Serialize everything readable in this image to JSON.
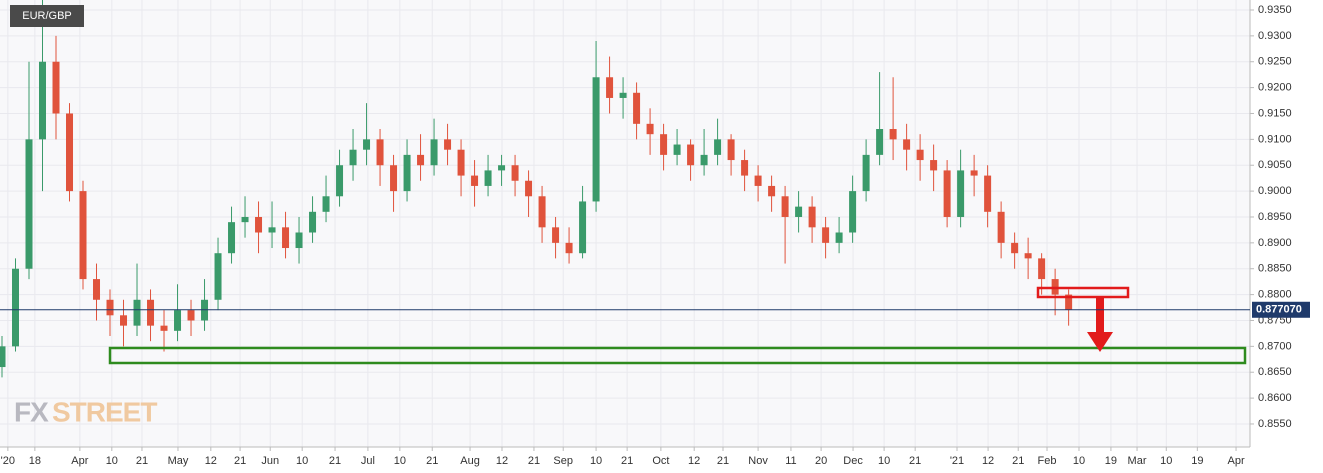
{
  "chart_data": {
    "type": "candlestick",
    "title": "EUR/GBP",
    "watermark": [
      "FX",
      "STREET"
    ],
    "up_color": "#3a9a6a",
    "down_color": "#e0533c",
    "grid": true,
    "x": [
      0,
      3,
      6,
      9,
      12,
      15,
      18,
      21,
      24,
      27,
      30,
      33,
      36,
      39,
      42,
      45,
      48,
      51,
      54,
      57,
      60,
      63,
      66,
      69,
      72,
      75,
      78,
      81,
      84,
      87,
      90,
      93,
      96,
      99,
      102,
      105,
      108,
      111,
      114,
      117,
      120,
      123,
      126,
      129,
      132,
      135,
      138,
      141,
      144,
      147,
      150,
      153,
      156,
      159,
      162,
      165,
      168,
      171,
      174,
      177,
      180,
      183,
      186,
      189,
      192,
      195,
      198,
      201,
      204,
      207,
      210,
      213,
      216,
      219,
      222,
      225,
      228,
      231,
      234,
      237
    ],
    "open": [
      0.866,
      0.87,
      0.885,
      0.91,
      0.925,
      0.915,
      0.9,
      0.883,
      0.879,
      0.876,
      0.874,
      0.879,
      0.874,
      0.873,
      0.877,
      0.875,
      0.879,
      0.888,
      0.894,
      0.895,
      0.892,
      0.893,
      0.889,
      0.892,
      0.896,
      0.899,
      0.905,
      0.908,
      0.91,
      0.905,
      0.9,
      0.907,
      0.905,
      0.91,
      0.908,
      0.903,
      0.901,
      0.904,
      0.905,
      0.902,
      0.899,
      0.893,
      0.89,
      0.888,
      0.898,
      0.922,
      0.918,
      0.919,
      0.913,
      0.911,
      0.907,
      0.909,
      0.905,
      0.907,
      0.91,
      0.906,
      0.903,
      0.901,
      0.899,
      0.895,
      0.897,
      0.893,
      0.89,
      0.892,
      0.9,
      0.907,
      0.912,
      0.91,
      0.908,
      0.906,
      0.904,
      0.895,
      0.904,
      0.903,
      0.896,
      0.89,
      0.888,
      0.887,
      0.883,
      0.88
    ],
    "high": [
      0.872,
      0.887,
      0.925,
      0.938,
      0.93,
      0.917,
      0.902,
      0.886,
      0.881,
      0.879,
      0.886,
      0.881,
      0.877,
      0.882,
      0.879,
      0.883,
      0.891,
      0.897,
      0.899,
      0.898,
      0.898,
      0.896,
      0.895,
      0.899,
      0.903,
      0.908,
      0.912,
      0.917,
      0.912,
      0.907,
      0.91,
      0.911,
      0.914,
      0.913,
      0.91,
      0.906,
      0.907,
      0.907,
      0.907,
      0.904,
      0.901,
      0.895,
      0.893,
      0.901,
      0.929,
      0.926,
      0.922,
      0.921,
      0.916,
      0.913,
      0.912,
      0.91,
      0.912,
      0.914,
      0.911,
      0.908,
      0.905,
      0.903,
      0.901,
      0.9,
      0.899,
      0.895,
      0.895,
      0.903,
      0.91,
      0.923,
      0.922,
      0.913,
      0.911,
      0.909,
      0.906,
      0.908,
      0.907,
      0.905,
      0.898,
      0.892,
      0.891,
      0.888,
      0.885,
      0.881
    ],
    "low": [
      0.864,
      0.869,
      0.883,
      0.9,
      0.91,
      0.898,
      0.881,
      0.875,
      0.872,
      0.87,
      0.872,
      0.871,
      0.869,
      0.871,
      0.872,
      0.873,
      0.877,
      0.886,
      0.891,
      0.888,
      0.889,
      0.887,
      0.886,
      0.89,
      0.894,
      0.897,
      0.902,
      0.905,
      0.901,
      0.896,
      0.898,
      0.902,
      0.903,
      0.905,
      0.899,
      0.897,
      0.899,
      0.901,
      0.899,
      0.895,
      0.89,
      0.887,
      0.886,
      0.887,
      0.896,
      0.915,
      0.914,
      0.91,
      0.907,
      0.904,
      0.905,
      0.902,
      0.903,
      0.905,
      0.903,
      0.9,
      0.898,
      0.896,
      0.886,
      0.892,
      0.89,
      0.887,
      0.888,
      0.89,
      0.898,
      0.905,
      0.906,
      0.904,
      0.902,
      0.9,
      0.893,
      0.893,
      0.899,
      0.893,
      0.887,
      0.885,
      0.883,
      0.88,
      0.876,
      0.874
    ],
    "close": [
      0.87,
      0.885,
      0.91,
      0.925,
      0.915,
      0.9,
      0.883,
      0.879,
      0.876,
      0.874,
      0.879,
      0.874,
      0.873,
      0.877,
      0.875,
      0.879,
      0.888,
      0.894,
      0.895,
      0.892,
      0.893,
      0.889,
      0.892,
      0.896,
      0.899,
      0.905,
      0.908,
      0.91,
      0.905,
      0.9,
      0.907,
      0.905,
      0.91,
      0.908,
      0.903,
      0.901,
      0.904,
      0.905,
      0.902,
      0.899,
      0.893,
      0.89,
      0.888,
      0.898,
      0.922,
      0.918,
      0.919,
      0.913,
      0.911,
      0.907,
      0.909,
      0.905,
      0.907,
      0.91,
      0.906,
      0.903,
      0.901,
      0.899,
      0.895,
      0.897,
      0.893,
      0.89,
      0.892,
      0.9,
      0.907,
      0.912,
      0.91,
      0.908,
      0.906,
      0.904,
      0.895,
      0.904,
      0.903,
      0.896,
      0.89,
      0.888,
      0.887,
      0.883,
      0.88,
      0.8771
    ],
    "last_price": {
      "value": 0.87707,
      "label": "0.877070"
    },
    "xlim": [
      0,
      277.3
    ],
    "xticks": [
      {
        "value": 1.3,
        "label": "'20"
      },
      {
        "value": 7.3,
        "label": "18"
      },
      {
        "value": 17.3,
        "label": "Apr"
      },
      {
        "value": 24.4,
        "label": "10"
      },
      {
        "value": 31.1,
        "label": "21"
      },
      {
        "value": 39.1,
        "label": "May"
      },
      {
        "value": 46.4,
        "label": "12"
      },
      {
        "value": 52.9,
        "label": "21"
      },
      {
        "value": 59.6,
        "label": "Jun"
      },
      {
        "value": 66.7,
        "label": "10"
      },
      {
        "value": 74.0,
        "label": "21"
      },
      {
        "value": 81.3,
        "label": "Jul"
      },
      {
        "value": 88.4,
        "label": "10"
      },
      {
        "value": 95.6,
        "label": "21"
      },
      {
        "value": 104.0,
        "label": "Aug"
      },
      {
        "value": 111.1,
        "label": "12"
      },
      {
        "value": 118.2,
        "label": "21"
      },
      {
        "value": 124.7,
        "label": "Sep"
      },
      {
        "value": 132.0,
        "label": "10"
      },
      {
        "value": 138.9,
        "label": "21"
      },
      {
        "value": 146.4,
        "label": "Oct"
      },
      {
        "value": 153.8,
        "label": "12"
      },
      {
        "value": 160.2,
        "label": "21"
      },
      {
        "value": 168.0,
        "label": "Nov"
      },
      {
        "value": 175.3,
        "label": "11"
      },
      {
        "value": 182.0,
        "label": "20"
      },
      {
        "value": 189.1,
        "label": "Dec"
      },
      {
        "value": 196.0,
        "label": "10"
      },
      {
        "value": 202.9,
        "label": "21"
      },
      {
        "value": 212.2,
        "label": "'21"
      },
      {
        "value": 219.1,
        "label": "12"
      },
      {
        "value": 225.8,
        "label": "21"
      },
      {
        "value": 232.2,
        "label": "Feb"
      },
      {
        "value": 239.3,
        "label": "10"
      },
      {
        "value": 246.4,
        "label": "19"
      },
      {
        "value": 252.2,
        "label": "Mar"
      },
      {
        "value": 258.7,
        "label": "10"
      },
      {
        "value": 265.6,
        "label": "19"
      },
      {
        "value": 274.2,
        "label": "Apr"
      }
    ],
    "ylim": [
      0.85055,
      0.93693
    ],
    "yticks": [
      {
        "value": 0.855,
        "label": "0.8550"
      },
      {
        "value": 0.86,
        "label": "0.8600"
      },
      {
        "value": 0.865,
        "label": "0.8650"
      },
      {
        "value": 0.87,
        "label": "0.8700"
      },
      {
        "value": 0.875,
        "label": "0.8750"
      },
      {
        "value": 0.88,
        "label": "0.8800"
      },
      {
        "value": 0.885,
        "label": "0.8850"
      },
      {
        "value": 0.89,
        "label": "0.8900"
      },
      {
        "value": 0.895,
        "label": "0.8950"
      },
      {
        "value": 0.9,
        "label": "0.9000"
      },
      {
        "value": 0.905,
        "label": "0.9050"
      },
      {
        "value": 0.91,
        "label": "0.9100"
      },
      {
        "value": 0.915,
        "label": "0.9150"
      },
      {
        "value": 0.92,
        "label": "0.9200"
      },
      {
        "value": 0.925,
        "label": "0.9250"
      },
      {
        "value": 0.93,
        "label": "0.9300"
      },
      {
        "value": 0.935,
        "label": "0.9350"
      }
    ]
  }
}
